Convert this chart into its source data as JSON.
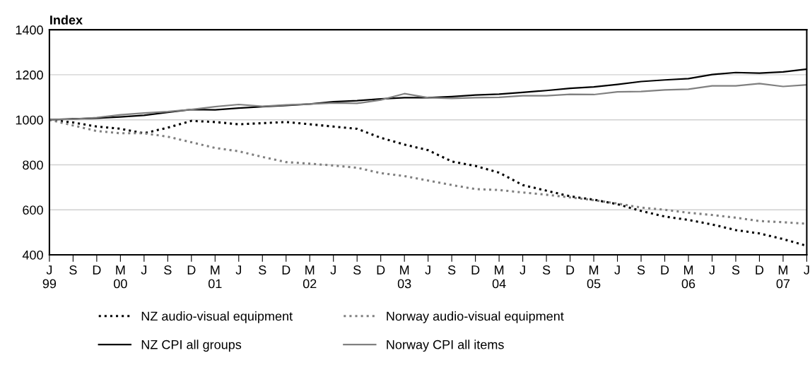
{
  "chart_data": {
    "type": "line",
    "ylabel": "Index",
    "categories": [
      "J\n99",
      "S",
      "D",
      "M\n00",
      "J",
      "S",
      "D",
      "M\n01",
      "J",
      "S",
      "D",
      "M\n02",
      "J",
      "S",
      "D",
      "M\n03",
      "J",
      "S",
      "D",
      "M\n04",
      "J",
      "S",
      "D",
      "M\n05",
      "J",
      "S",
      "D",
      "M\n06",
      "J",
      "S",
      "D",
      "M\n07",
      "J"
    ],
    "series": [
      {
        "name": "NZ audio-visual equipment",
        "color": "#000000",
        "line_style": "dotted",
        "values": [
          1000,
          988,
          970,
          960,
          940,
          965,
          995,
          990,
          980,
          985,
          990,
          980,
          970,
          960,
          920,
          890,
          865,
          815,
          795,
          765,
          710,
          685,
          660,
          645,
          625,
          595,
          570,
          555,
          535,
          510,
          495,
          470,
          440
        ]
      },
      {
        "name": "Norway audio-visual equipment",
        "color": "#808080",
        "line_style": "dotted",
        "values": [
          1000,
          975,
          950,
          940,
          940,
          925,
          900,
          875,
          860,
          835,
          812,
          805,
          797,
          787,
          763,
          750,
          730,
          710,
          692,
          688,
          677,
          667,
          655,
          643,
          628,
          610,
          600,
          587,
          577,
          565,
          550,
          545,
          538
        ]
      },
      {
        "name": "NZ CPI all groups",
        "color": "#000000",
        "line_style": "solid",
        "values": [
          1000,
          1004,
          1007,
          1013,
          1020,
          1033,
          1046,
          1044,
          1052,
          1058,
          1064,
          1070,
          1080,
          1085,
          1093,
          1098,
          1098,
          1103,
          1110,
          1114,
          1122,
          1130,
          1140,
          1146,
          1157,
          1170,
          1177,
          1183,
          1201,
          1210,
          1207,
          1213,
          1225
        ]
      },
      {
        "name": "Norway CPI all items",
        "color": "#808080",
        "line_style": "solid",
        "values": [
          1000,
          1003,
          1010,
          1022,
          1030,
          1036,
          1046,
          1058,
          1068,
          1060,
          1066,
          1070,
          1075,
          1073,
          1088,
          1116,
          1098,
          1095,
          1098,
          1100,
          1107,
          1107,
          1113,
          1112,
          1124,
          1126,
          1133,
          1136,
          1151,
          1151,
          1161,
          1148,
          1155
        ]
      }
    ],
    "ylim": [
      400,
      1400
    ],
    "yticks": [
      400,
      600,
      800,
      1000,
      1200,
      1400
    ],
    "grid": "y",
    "legend": "bottom",
    "marker": "none"
  }
}
